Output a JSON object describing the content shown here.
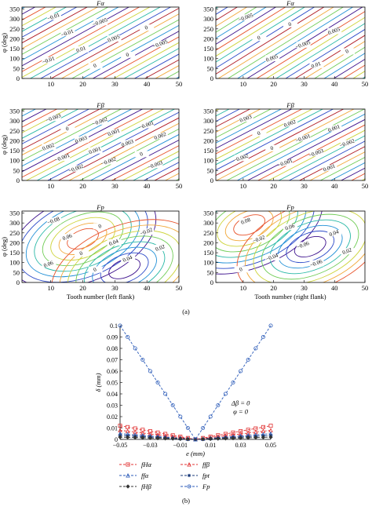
{
  "figure_labels": {
    "a": "(a)",
    "b": "(b)"
  },
  "contour_colors": [
    "#3b0f8c",
    "#2b49c8",
    "#1f8fd6",
    "#28b8a6",
    "#6fcc55",
    "#cdd43a",
    "#f2a83a",
    "#e8522a",
    "#b01922"
  ],
  "chart_data": [
    {
      "type": "heatmap",
      "panel": "left-flank-F-alpha",
      "title": "Fα",
      "ylabel": "φ (deg)",
      "xlim": [
        1,
        50
      ],
      "ylim": [
        0,
        360
      ],
      "xticks": [
        10,
        20,
        30,
        40,
        50
      ],
      "yticks": [
        0,
        50,
        100,
        150,
        200,
        250,
        300,
        350
      ],
      "contour_labels": [
        "−0.01",
        "−0.005",
        "0",
        "−0.01",
        "0.005",
        "−0.005",
        "0.01",
        "0",
        "−0.01",
        "0"
      ]
    },
    {
      "type": "heatmap",
      "panel": "right-flank-F-alpha",
      "title": "Fα",
      "ylabel": "",
      "xlim": [
        1,
        50
      ],
      "ylim": [
        0,
        360
      ],
      "xticks": [
        10,
        20,
        30,
        40,
        50
      ],
      "yticks": [
        0,
        50,
        100,
        150,
        200,
        250,
        300,
        350
      ],
      "contour_labels": [
        "−0.005",
        "0",
        "0.005",
        "0",
        "−0.005",
        "0",
        "0.005",
        "0.01"
      ]
    },
    {
      "type": "heatmap",
      "panel": "left-flank-F-beta",
      "title": "Fβ",
      "ylabel": "φ (deg)",
      "xlim": [
        1,
        50
      ],
      "ylim": [
        0,
        360
      ],
      "xticks": [
        10,
        20,
        30,
        40,
        50
      ],
      "yticks": [
        0,
        50,
        100,
        150,
        200,
        250,
        300,
        350
      ],
      "contour_labels": [
        "−0.003",
        "−0.002",
        "−0.001",
        "0",
        "0.001",
        "0.002",
        "0.003",
        "0.003",
        "0.002",
        "0.001",
        "0",
        "−0.001",
        "−0.002",
        "−0.003",
        "−0.002"
      ]
    },
    {
      "type": "heatmap",
      "panel": "right-flank-F-beta",
      "title": "Fβ",
      "ylabel": "",
      "xlim": [
        1,
        50
      ],
      "ylim": [
        0,
        360
      ],
      "xticks": [
        10,
        20,
        30,
        40,
        50
      ],
      "yticks": [
        0,
        50,
        100,
        150,
        200,
        250,
        300,
        350
      ],
      "contour_labels": [
        "0.003",
        "0.002",
        "0.001",
        "0",
        "−0.001",
        "−0.002",
        "0",
        "−0.003",
        "−0.002",
        "−0.001",
        "0.001"
      ]
    },
    {
      "type": "heatmap",
      "panel": "left-flank-F-p",
      "title": "Fp",
      "xlabel": "Tooth number (left flank)",
      "ylabel": "φ (deg)",
      "xlim": [
        1,
        50
      ],
      "ylim": [
        0,
        360
      ],
      "xticks": [
        10,
        20,
        30,
        40,
        50
      ],
      "yticks": [
        0,
        50,
        100,
        150,
        200,
        250,
        300,
        350
      ],
      "contour_labels": [
        "−0.08",
        "0",
        "−0.02",
        "0.06",
        "0.04",
        "0.02",
        "0",
        "0.04",
        "0.06",
        "0"
      ]
    },
    {
      "type": "heatmap",
      "panel": "right-flank-F-p",
      "title": "Fp",
      "xlabel": "Tooth number (right flank)",
      "ylabel": "",
      "xlim": [
        1,
        50
      ],
      "ylim": [
        0,
        360
      ],
      "xticks": [
        10,
        20,
        30,
        40,
        50
      ],
      "yticks": [
        0,
        50,
        100,
        150,
        200,
        250,
        300,
        350
      ],
      "contour_labels": [
        "0.08",
        "0.06",
        "0.04",
        "−0.02",
        "−0.06",
        "0.02",
        "−0.04",
        "−0.06",
        "0"
      ]
    },
    {
      "type": "line",
      "panel": "b",
      "title": "",
      "xlabel": "e (mm)",
      "ylabel": "δ (mm)",
      "xlim": [
        -0.05,
        0.05
      ],
      "ylim": [
        0,
        0.1
      ],
      "xticks": [
        "−0.05",
        "−0.03",
        "−0.01",
        "0.01",
        "0.03",
        "0.05"
      ],
      "yticks": [
        "0",
        "0.01",
        "0.02",
        "0.03",
        "0.04",
        "0.05",
        "0.06",
        "0.07",
        "0.08",
        "0.09",
        "0.1"
      ],
      "annotation": [
        "Δβ = 0",
        "φ = 0"
      ],
      "x": [
        -0.05,
        -0.045,
        -0.04,
        -0.035,
        -0.03,
        -0.025,
        -0.02,
        -0.015,
        -0.01,
        -0.005,
        0,
        0.005,
        0.01,
        0.015,
        0.02,
        0.025,
        0.03,
        0.035,
        0.04,
        0.045,
        0.05
      ],
      "series": [
        {
          "name": "fHα",
          "color": "#e03030",
          "marker": "square",
          "values": [
            0.012,
            0.0108,
            0.0096,
            0.0084,
            0.0072,
            0.006,
            0.0048,
            0.0036,
            0.0024,
            0.0012,
            0,
            0.0012,
            0.0024,
            0.0036,
            0.0048,
            0.006,
            0.0072,
            0.0084,
            0.0096,
            0.0108,
            0.012
          ]
        },
        {
          "name": "ffβ",
          "color": "#e03030",
          "marker": "triangle",
          "values": [
            0.008,
            0.0072,
            0.0064,
            0.0056,
            0.0048,
            0.004,
            0.0032,
            0.0024,
            0.0016,
            0.0008,
            0,
            0.0008,
            0.0016,
            0.0024,
            0.0032,
            0.004,
            0.0048,
            0.0056,
            0.0064,
            0.0072,
            0.008
          ]
        },
        {
          "name": "ffα",
          "color": "#2a5ab8",
          "marker": "triangle",
          "values": [
            0.005,
            0.0045,
            0.004,
            0.0035,
            0.003,
            0.0025,
            0.002,
            0.0015,
            0.001,
            0.0005,
            0,
            0.0005,
            0.001,
            0.0015,
            0.002,
            0.0025,
            0.003,
            0.0035,
            0.004,
            0.0045,
            0.005
          ]
        },
        {
          "name": "fpt",
          "color": "#1a3a7a",
          "marker": "star",
          "values": [
            0.0035,
            0.00315,
            0.0028,
            0.00245,
            0.0021,
            0.00175,
            0.0014,
            0.00105,
            0.0007,
            0.00035,
            0,
            0.00035,
            0.0007,
            0.00105,
            0.0014,
            0.00175,
            0.0021,
            0.00245,
            0.0028,
            0.00315,
            0.0035
          ]
        },
        {
          "name": "fHβ",
          "color": "#333333",
          "marker": "diamond",
          "values": [
            0.002,
            0.0018,
            0.0016,
            0.0014,
            0.0012,
            0.001,
            0.0008,
            0.0006,
            0.0004,
            0.0002,
            0,
            0.0002,
            0.0004,
            0.0006,
            0.0008,
            0.001,
            0.0012,
            0.0014,
            0.0016,
            0.0018,
            0.002
          ]
        },
        {
          "name": "Fp",
          "color": "#2a5ab8",
          "marker": "circle",
          "values": [
            0.1,
            0.09,
            0.08,
            0.07,
            0.06,
            0.05,
            0.04,
            0.03,
            0.02,
            0.01,
            0,
            0.01,
            0.02,
            0.03,
            0.04,
            0.05,
            0.06,
            0.07,
            0.08,
            0.09,
            0.1
          ]
        }
      ]
    }
  ]
}
